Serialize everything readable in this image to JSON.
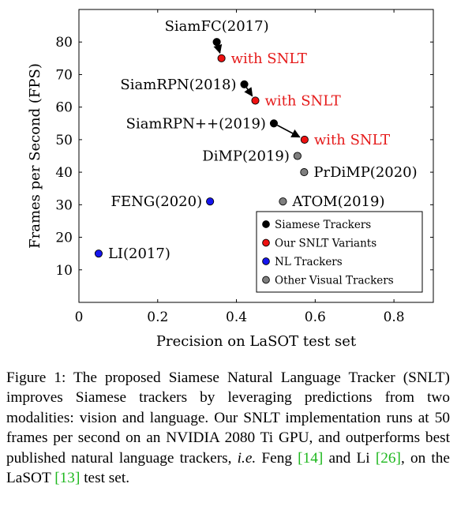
{
  "chart_data": {
    "type": "scatter",
    "xlabel": "Precision on LaSOT test set",
    "ylabel": "Frames per Second (FPS)",
    "xlim": [
      0,
      0.9
    ],
    "ylim": [
      0,
      90
    ],
    "x_ticks": [
      {
        "value": 0,
        "label": "0"
      },
      {
        "value": 0.2,
        "label": "0.2"
      },
      {
        "value": 0.4,
        "label": "0.4"
      },
      {
        "value": 0.6,
        "label": "0.6"
      },
      {
        "value": 0.8,
        "label": "0.8"
      }
    ],
    "y_ticks": [
      {
        "value": 10,
        "label": "10"
      },
      {
        "value": 20,
        "label": "20"
      },
      {
        "value": 30,
        "label": "30"
      },
      {
        "value": 40,
        "label": "40"
      },
      {
        "value": 50,
        "label": "50"
      },
      {
        "value": 60,
        "label": "60"
      },
      {
        "value": 70,
        "label": "70"
      },
      {
        "value": 80,
        "label": "80"
      }
    ],
    "grid": false,
    "legend_position": "bottom-right",
    "series": [
      {
        "name": "Siamese Trackers",
        "color": "#000000",
        "points": [
          {
            "x": 0.35,
            "y": 80,
            "label": "SiamFC(2017)",
            "label_pos": "above"
          },
          {
            "x": 0.42,
            "y": 67,
            "label": "SiamRPN(2018)",
            "label_pos": "left"
          },
          {
            "x": 0.495,
            "y": 55,
            "label": "SiamRPN++(2019)",
            "label_pos": "left"
          }
        ]
      },
      {
        "name": "Our SNLT Variants",
        "color": "#ee1111",
        "points": [
          {
            "x": 0.362,
            "y": 75,
            "label": "with SNLT",
            "label_pos": "right"
          },
          {
            "x": 0.448,
            "y": 62,
            "label": "with SNLT",
            "label_pos": "right"
          },
          {
            "x": 0.573,
            "y": 50,
            "label": "with SNLT",
            "label_pos": "right"
          }
        ]
      },
      {
        "name": "NL Trackers",
        "color": "#1515ee",
        "points": [
          {
            "x": 0.333,
            "y": 31,
            "label": "FENG(2020)",
            "label_pos": "left"
          },
          {
            "x": 0.05,
            "y": 15,
            "label": "LI(2017)",
            "label_pos": "right"
          }
        ]
      },
      {
        "name": "Other Visual Trackers",
        "color": "#7f7f7f",
        "points": [
          {
            "x": 0.555,
            "y": 45,
            "label": "DiMP(2019)",
            "label_pos": "left"
          },
          {
            "x": 0.572,
            "y": 40,
            "label": "PrDiMP(2020)",
            "label_pos": "right"
          },
          {
            "x": 0.518,
            "y": 31,
            "label": "ATOM(2019)",
            "label_pos": "right"
          }
        ]
      }
    ],
    "arrows": [
      {
        "from": [
          0.35,
          80
        ],
        "to": [
          0.362,
          75
        ]
      },
      {
        "from": [
          0.42,
          67
        ],
        "to": [
          0.448,
          62
        ]
      },
      {
        "from": [
          0.495,
          55
        ],
        "to": [
          0.573,
          50
        ]
      }
    ]
  },
  "caption": {
    "figure_label": "Figure 1:",
    "text_1": "The proposed Siamese Natural Language Tracker (SNLT) improves Siamese trackers by leveraging predictions from two modalities: vision and language. Our SNLT implementation runs at 50 frames per second on an NVIDIA 2080 Ti GPU, and outperforms best published natural language trackers,",
    "ie": "i.e.",
    "text_2": "Feng",
    "ref_feng": "[14]",
    "text_3": "and Li",
    "ref_li": "[26]",
    "text_4": ", on the LaSOT",
    "ref_lasot": "[13]",
    "text_5": "test set."
  }
}
